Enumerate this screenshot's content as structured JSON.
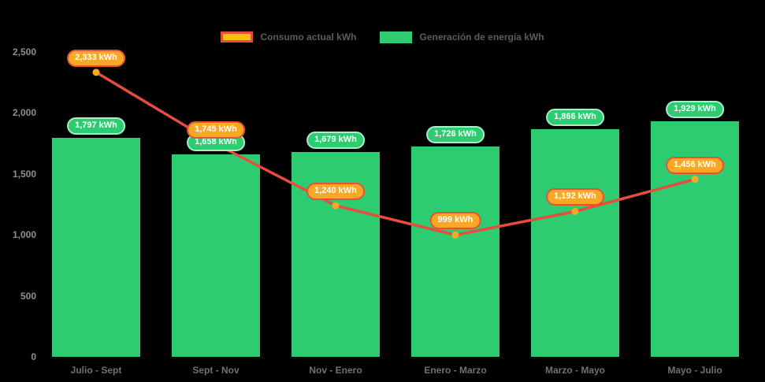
{
  "chart_data": {
    "type": "combo-bar-line",
    "categories": [
      "Julio - Sept",
      "Sept - Nov",
      "Nov - Enero",
      "Enero - Marzo",
      "Marzo - Mayo",
      "Mayo - Julio"
    ],
    "series": [
      {
        "name": "Consumo actual kWh",
        "type": "line",
        "color": "#e74c3c",
        "marker_color": "#f9a825",
        "values": [
          2333,
          1745,
          1240,
          999,
          1192,
          1456
        ],
        "point_labels": [
          "2,333 kWh",
          "1,745 kWh",
          "1,240 kWh",
          "999 kWh",
          "1,192 kWh",
          "1,456 kWh"
        ]
      },
      {
        "name": "Generación de energía kWh",
        "type": "bar",
        "color": "#2ecc71",
        "values": [
          1797,
          1658,
          1679,
          1726,
          1866,
          1929
        ],
        "point_labels": [
          "1,797 kWh",
          "1,658 kWh",
          "1,679 kWh",
          "1,726 kWh",
          "1,866 kWh",
          "1,929 kWh"
        ]
      }
    ],
    "y_axis": {
      "min": 0,
      "max": 2500,
      "tick_values": [
        0,
        500,
        1000,
        1500,
        2000,
        2500
      ],
      "tick_labels": [
        "0",
        "500",
        "1,000",
        "1,500",
        "2,000",
        "2,500"
      ]
    },
    "grid": false,
    "legend_position": "top-center",
    "background": "#000000"
  },
  "legend": {
    "consumo_label": "Consumo actual kWh",
    "generacion_label": "Generación de energía kWh"
  },
  "colors": {
    "bar_green": "#2ecc71",
    "line_red": "#e74c3c",
    "marker_orange": "#f9a825",
    "legend_swatch_yellow": "#f1c40f",
    "axis_text_gray": "#8f8f8f",
    "background": "#000000"
  }
}
